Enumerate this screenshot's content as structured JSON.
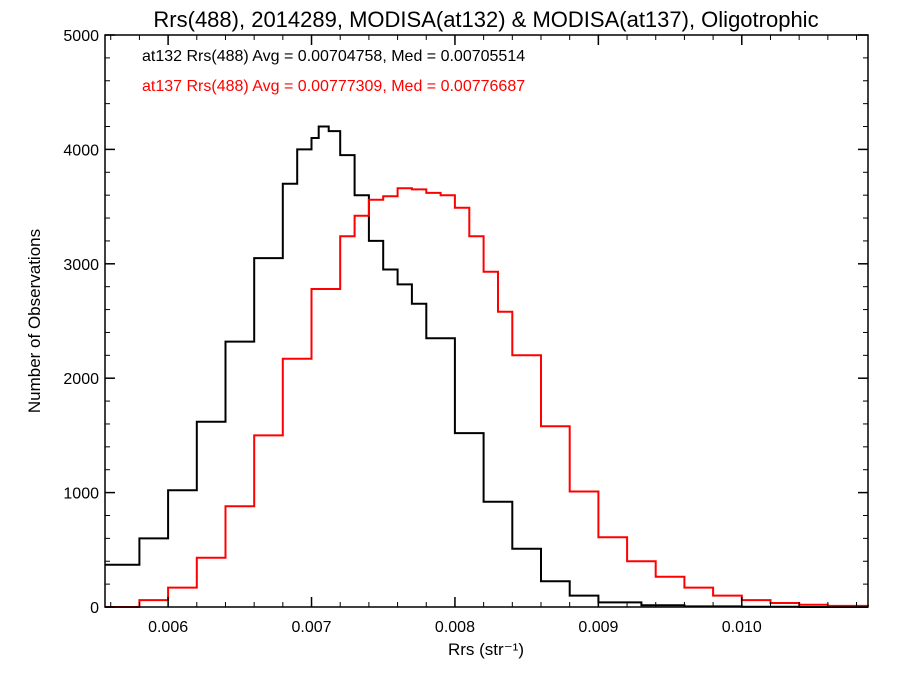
{
  "chart_data": {
    "type": "line",
    "title": "Rrs(488), 2014289, MODISA(at132) & MODISA(at137), Oligotrophic",
    "xlabel": "Rrs (str⁻¹)",
    "ylabel": "Number of Observations",
    "xlim": [
      0.00556,
      0.01088
    ],
    "ylim": [
      0,
      5000
    ],
    "x_ticks": [
      0.006,
      0.007,
      0.008,
      0.009,
      0.01
    ],
    "x_tick_labels": [
      "0.006",
      "0.007",
      "0.008",
      "0.009",
      "0.010"
    ],
    "y_ticks": [
      0,
      1000,
      2000,
      3000,
      4000,
      5000
    ],
    "y_tick_labels": [
      "0",
      "1000",
      "2000",
      "3000",
      "4000",
      "5000"
    ],
    "grid": false,
    "series": [
      {
        "name": "at132",
        "color": "#000000",
        "annotation": "at132 Rrs(488) Avg = 0.00704758, Med = 0.00705514",
        "x": [
          0.00556,
          0.0058,
          0.006,
          0.0062,
          0.0064,
          0.0066,
          0.0068,
          0.0069,
          0.007,
          0.00705,
          0.00712,
          0.0072,
          0.0073,
          0.0074,
          0.0075,
          0.0076,
          0.0077,
          0.0078,
          0.008,
          0.0082,
          0.0084,
          0.0086,
          0.0088,
          0.009,
          0.0093,
          0.0096,
          0.01,
          0.0104,
          0.01088
        ],
        "y": [
          370,
          600,
          1020,
          1620,
          2320,
          3050,
          3700,
          4000,
          4100,
          4200,
          4160,
          3950,
          3600,
          3200,
          2950,
          2820,
          2650,
          2350,
          1520,
          920,
          510,
          225,
          100,
          40,
          15,
          5,
          2,
          0,
          0
        ]
      },
      {
        "name": "at137",
        "color": "#ff0000",
        "annotation": "at137 Rrs(488) Avg = 0.00777309, Med = 0.00776687",
        "x": [
          0.00556,
          0.0058,
          0.006,
          0.0062,
          0.0064,
          0.0066,
          0.0068,
          0.007,
          0.0072,
          0.0073,
          0.0074,
          0.0075,
          0.0076,
          0.0077,
          0.0078,
          0.0079,
          0.008,
          0.0081,
          0.0082,
          0.0083,
          0.0084,
          0.0086,
          0.0088,
          0.009,
          0.0092,
          0.0094,
          0.0096,
          0.0098,
          0.01,
          0.0102,
          0.0104,
          0.0106,
          0.01088
        ],
        "y": [
          0,
          60,
          170,
          430,
          880,
          1500,
          2170,
          2780,
          3240,
          3420,
          3560,
          3590,
          3660,
          3650,
          3620,
          3600,
          3490,
          3240,
          2930,
          2580,
          2200,
          1580,
          1010,
          610,
          400,
          265,
          170,
          100,
          60,
          35,
          20,
          10,
          5
        ]
      }
    ]
  }
}
